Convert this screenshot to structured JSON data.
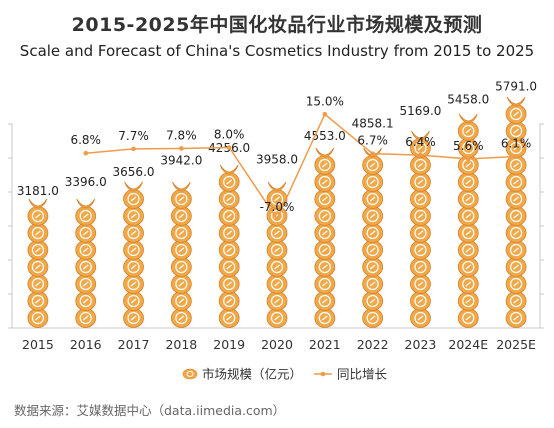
{
  "chart_data": {
    "type": "bar",
    "title": "2015-2025年中国化妆品行业市场规模及预测",
    "subtitle": "Scale and Forecast of China's Cosmetics Industry from 2015 to 2025",
    "categories": [
      "2015",
      "2016",
      "2017",
      "2018",
      "2019",
      "2020",
      "2021",
      "2022",
      "2023",
      "2024E",
      "2025E"
    ],
    "series": [
      {
        "name": "市场规模（亿元）",
        "type": "bar",
        "values": [
          3181.0,
          3396.0,
          3656.0,
          3942.0,
          4256.0,
          3958.0,
          4553.0,
          4858.1,
          5169.0,
          5458.0,
          5791.0
        ],
        "labels": [
          "3181.0",
          "3396.0",
          "3656.0",
          "3942.0",
          "4256.0",
          "3958.0",
          "4553.0",
          "4858.1",
          "5169.0",
          "5458.0",
          "5791.0"
        ],
        "color": "#F0A848"
      },
      {
        "name": "同比增长",
        "type": "line",
        "values": [
          null,
          6.8,
          7.7,
          7.8,
          8.0,
          -7.0,
          15.0,
          6.7,
          6.4,
          5.6,
          6.1
        ],
        "labels": [
          "",
          "6.8%",
          "7.7%",
          "7.8%",
          "8.0%",
          "-7.0%",
          "15.0%",
          "6.7%",
          "6.4%",
          "5.6%",
          "6.1%"
        ],
        "color": "#F29A4A"
      }
    ],
    "bar_ylim": [
      0,
      6000
    ],
    "line_ylim": [
      -30,
      18
    ],
    "grid": false,
    "legend": "bottom-center",
    "accent_color": "#F0A848",
    "axis_color": "#C8C8C8"
  },
  "source": "数据来源：艾媒数据中心（data.iimedia.com）"
}
